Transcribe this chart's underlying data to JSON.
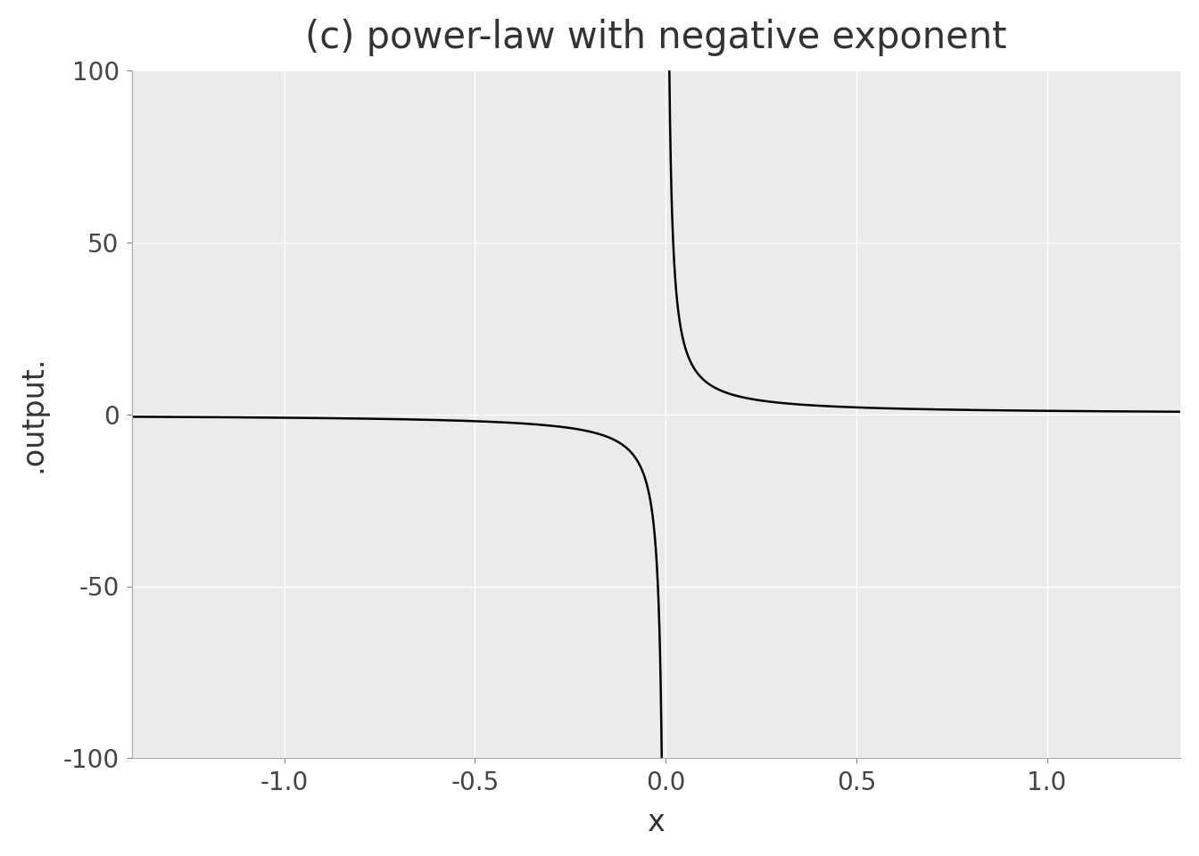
{
  "title": "(c) power-law with negative exponent",
  "xlabel": "x",
  "ylabel": ".output.",
  "xlim": [
    -1.4,
    1.35
  ],
  "ylim": [
    -100,
    100
  ],
  "xticks": [
    -1.0,
    -0.5,
    0.0,
    0.5,
    1.0
  ],
  "yticks": [
    -100,
    -50,
    0,
    50,
    100
  ],
  "line_color": "#000000",
  "line_width": 1.8,
  "background_color": "#EBEBEB",
  "grid_color": "#FFFFFF",
  "clip_value": 100,
  "n_points": 3000,
  "title_fontsize": 30,
  "label_fontsize": 24,
  "tick_fontsize": 20,
  "fig_background": "#FFFFFF"
}
